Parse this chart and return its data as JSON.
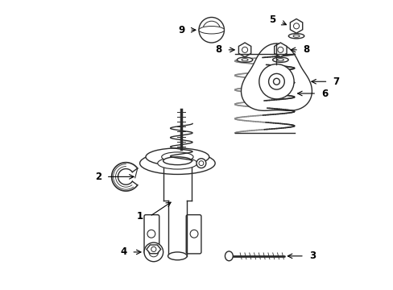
{
  "background_color": "#ffffff",
  "fig_width": 4.89,
  "fig_height": 3.6,
  "dpi": 100,
  "line_color": "#2a2a2a",
  "text_color": "#000000",
  "label_fontsize": 8.5
}
